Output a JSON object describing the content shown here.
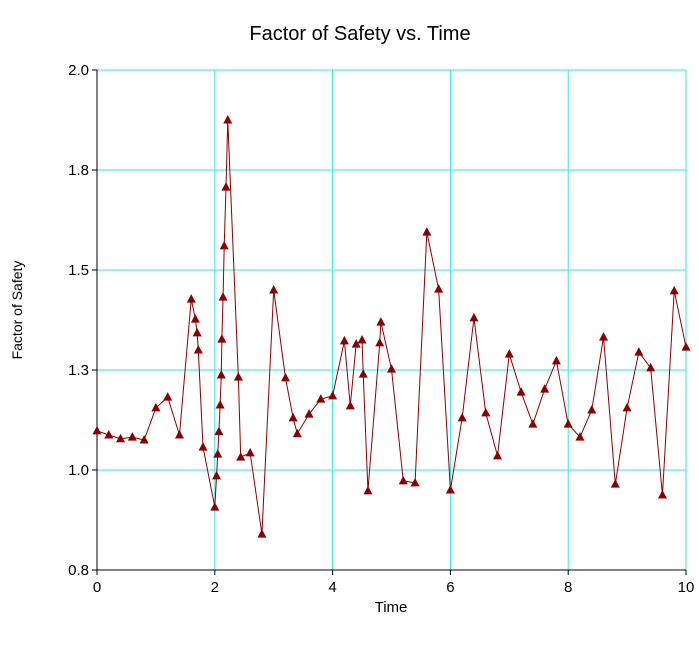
{
  "chart_data": {
    "type": "line",
    "title": "Factor of Safety vs. Time",
    "x_label": "Time",
    "y_label": "Factor of Safety",
    "grid": true,
    "grid_color": "#33e6e6",
    "xlim": [
      0,
      10
    ],
    "xticks": [
      0,
      2,
      4,
      6,
      8,
      10
    ],
    "ylim": [
      0.8,
      2.0
    ],
    "yticks": [
      {
        "value": 0.8,
        "label": "0.8"
      },
      {
        "value": 1.04,
        "label": "1.0"
      },
      {
        "value": 1.28,
        "label": "1.3"
      },
      {
        "value": 1.52,
        "label": "1.5"
      },
      {
        "value": 1.76,
        "label": "1.8"
      },
      {
        "value": 2.0,
        "label": "2.0"
      }
    ],
    "x": [
      0,
      0.2,
      0.4,
      0.6,
      0.8,
      1.0,
      1.2,
      1.4,
      1.6,
      1.67,
      1.7,
      1.72,
      1.8,
      2.0,
      2.03,
      2.05,
      2.07,
      2.09,
      2.11,
      2.12,
      2.14,
      2.16,
      2.19,
      2.22,
      2.4,
      2.44,
      2.6,
      2.8,
      3.0,
      3.2,
      3.33,
      3.4,
      3.6,
      3.8,
      4.0,
      4.2,
      4.3,
      4.4,
      4.5,
      4.52,
      4.6,
      4.8,
      4.82,
      5.0,
      5.2,
      5.4,
      5.6,
      5.8,
      6.0,
      6.2,
      6.4,
      6.6,
      6.8,
      7.0,
      7.2,
      7.4,
      7.6,
      7.8,
      8.0,
      8.2,
      8.4,
      8.6,
      8.8,
      9.0,
      9.2,
      9.4,
      9.6,
      9.8,
      10.0
    ],
    "series": [
      {
        "color": "#8b0000",
        "values": [
          1.134,
          1.124,
          1.115,
          1.119,
          1.112,
          1.189,
          1.215,
          1.124,
          1.45,
          1.402,
          1.369,
          1.328,
          1.095,
          0.951,
          1.026,
          1.078,
          1.132,
          1.196,
          1.268,
          1.354,
          1.455,
          1.578,
          1.719,
          1.88,
          1.263,
          1.071,
          1.081,
          0.886,
          1.472,
          1.261,
          1.165,
          1.127,
          1.174,
          1.21,
          1.218,
          1.35,
          1.194,
          1.342,
          1.352,
          1.27,
          0.99,
          1.345,
          1.395,
          1.282,
          1.014,
          1.009,
          1.611,
          1.474,
          0.992,
          1.165,
          1.405,
          1.177,
          1.074,
          1.318,
          1.227,
          1.15,
          1.234,
          1.302,
          1.15,
          1.119,
          1.184,
          1.359,
          1.006,
          1.189,
          1.323,
          1.285,
          0.98,
          1.47,
          1.335
        ]
      }
    ]
  }
}
